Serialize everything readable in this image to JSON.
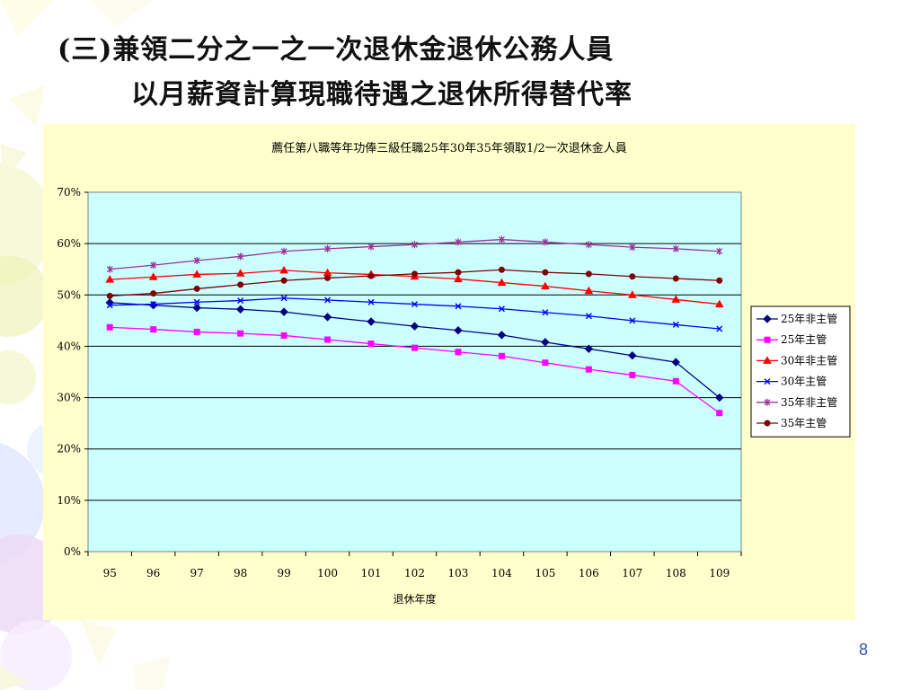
{
  "slide": {
    "title_line1": "(三)兼領二分之一之一次退休金退休公務人員",
    "title_line2": "以月薪資計算現職待遇之退休所得替代率",
    "page_number": "8"
  },
  "chart_data": {
    "type": "line",
    "title": "薦任第八職等年功俸三級任職25年30年35年領取1/2一次退休金人員",
    "xlabel": "退休年度",
    "ylabel": "",
    "categories": [
      "95",
      "96",
      "97",
      "98",
      "99",
      "100",
      "101",
      "102",
      "103",
      "104",
      "105",
      "106",
      "107",
      "108",
      "109"
    ],
    "y_ticks": [
      "0%",
      "10%",
      "20%",
      "30%",
      "40%",
      "50%",
      "60%",
      "70%"
    ],
    "ylim": [
      0,
      70
    ],
    "grid": true,
    "legend": "right",
    "plot_background": "#ccffff",
    "series": [
      {
        "name": "25年非主管",
        "color": "#000080",
        "marker": "diamond",
        "values": [
          48.5,
          48.0,
          47.5,
          47.2,
          46.7,
          45.7,
          44.8,
          43.9,
          43.1,
          42.2,
          40.8,
          39.5,
          38.2,
          36.9,
          30.0
        ]
      },
      {
        "name": "25年主管",
        "color": "#ff00ff",
        "marker": "square",
        "values": [
          43.7,
          43.3,
          42.8,
          42.5,
          42.1,
          41.3,
          40.5,
          39.7,
          38.9,
          38.1,
          36.8,
          35.5,
          34.4,
          33.2,
          27.0
        ]
      },
      {
        "name": "30年非主管",
        "color": "#ff0000",
        "marker": "triangle",
        "values": [
          53.0,
          53.5,
          54.0,
          54.2,
          54.8,
          54.3,
          54.0,
          53.6,
          53.1,
          52.4,
          51.7,
          50.8,
          50.0,
          49.1,
          48.2
        ]
      },
      {
        "name": "30年主管",
        "color": "#0000ff",
        "marker": "x",
        "values": [
          48.0,
          48.2,
          48.6,
          48.9,
          49.4,
          49.0,
          48.6,
          48.2,
          47.8,
          47.3,
          46.6,
          45.9,
          45.0,
          44.2,
          43.4
        ]
      },
      {
        "name": "35年非主管",
        "color": "#993399",
        "marker": "star",
        "values": [
          55.0,
          55.8,
          56.7,
          57.5,
          58.5,
          59.0,
          59.4,
          59.8,
          60.3,
          60.8,
          60.3,
          59.8,
          59.3,
          59.0,
          58.5
        ]
      },
      {
        "name": "35年主管",
        "color": "#800000",
        "marker": "circle",
        "values": [
          49.8,
          50.3,
          51.2,
          52.0,
          52.8,
          53.3,
          53.7,
          54.1,
          54.4,
          54.9,
          54.4,
          54.1,
          53.6,
          53.2,
          52.8
        ]
      }
    ]
  }
}
